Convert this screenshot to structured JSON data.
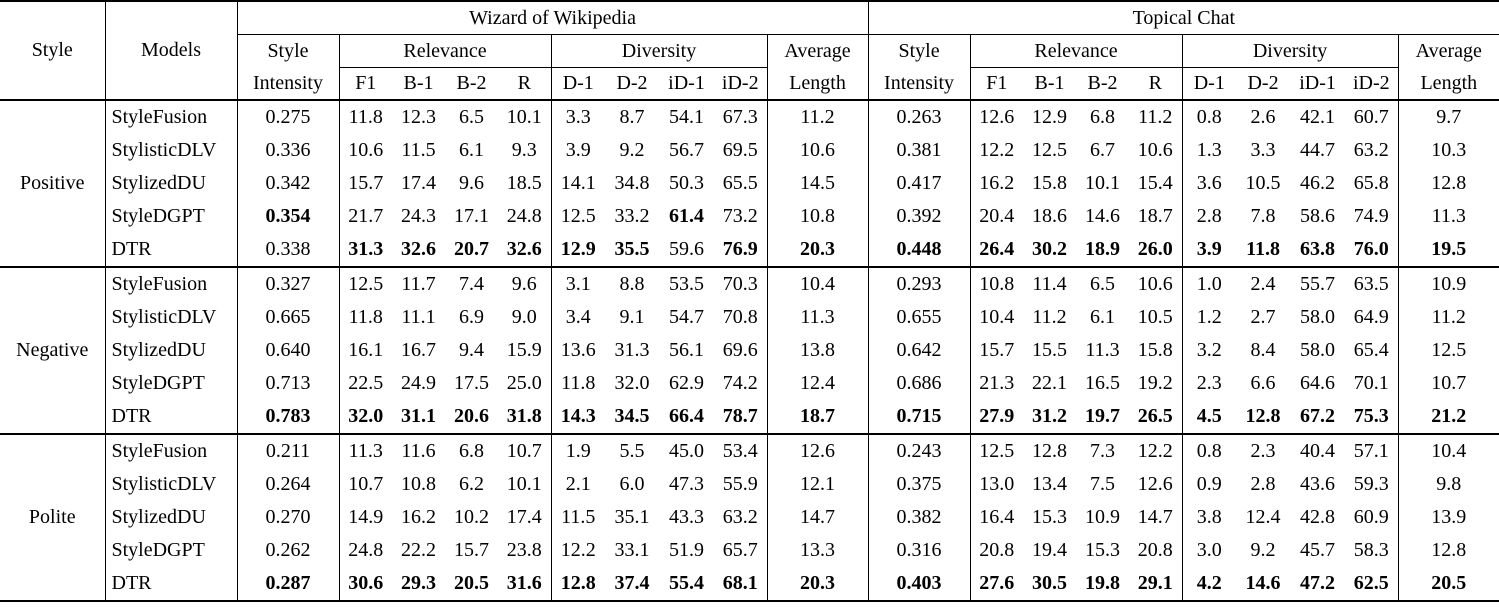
{
  "colors": {
    "text": "#000000",
    "background": "#ffffff",
    "border": "#000000"
  },
  "table": {
    "corner_headers": [
      "Style",
      "Models"
    ],
    "datasets": [
      "Wizard of Wikipedia",
      "Topical Chat"
    ],
    "subheaders": {
      "style_intensity": [
        "Style",
        "Intensity"
      ],
      "relevance": "Relevance",
      "diversity": "Diversity",
      "average_length": [
        "Average",
        "Length"
      ],
      "relevance_cols": [
        "F1",
        "B-1",
        "B-2",
        "R"
      ],
      "diversity_cols": [
        "D-1",
        "D-2",
        "iD-1",
        "iD-2"
      ]
    },
    "columns_per_dataset": [
      "Style Intensity",
      "F1",
      "B-1",
      "B-2",
      "R",
      "D-1",
      "D-2",
      "iD-1",
      "iD-2",
      "Average Length"
    ],
    "sections": [
      {
        "style": "Positive",
        "rows": [
          {
            "model": "StyleFusion",
            "cells": [
              "0.275",
              "11.8",
              "12.3",
              "6.5",
              "10.1",
              "3.3",
              "8.7",
              "54.1",
              "67.3",
              "11.2",
              "0.263",
              "12.6",
              "12.9",
              "6.8",
              "11.2",
              "0.8",
              "2.6",
              "42.1",
              "60.7",
              "9.7"
            ],
            "bold": []
          },
          {
            "model": "StylisticDLV",
            "cells": [
              "0.336",
              "10.6",
              "11.5",
              "6.1",
              "9.3",
              "3.9",
              "9.2",
              "56.7",
              "69.5",
              "10.6",
              "0.381",
              "12.2",
              "12.5",
              "6.7",
              "10.6",
              "1.3",
              "3.3",
              "44.7",
              "63.2",
              "10.3"
            ],
            "bold": []
          },
          {
            "model": "StylizedDU",
            "cells": [
              "0.342",
              "15.7",
              "17.4",
              "9.6",
              "18.5",
              "14.1",
              "34.8",
              "50.3",
              "65.5",
              "14.5",
              "0.417",
              "16.2",
              "15.8",
              "10.1",
              "15.4",
              "3.6",
              "10.5",
              "46.2",
              "65.8",
              "12.8"
            ],
            "bold": []
          },
          {
            "model": "StyleDGPT",
            "cells": [
              "0.354",
              "21.7",
              "24.3",
              "17.1",
              "24.8",
              "12.5",
              "33.2",
              "61.4",
              "73.2",
              "10.8",
              "0.392",
              "20.4",
              "18.6",
              "14.6",
              "18.7",
              "2.8",
              "7.8",
              "58.6",
              "74.9",
              "11.3"
            ],
            "bold": [
              0,
              7
            ]
          },
          {
            "model": "DTR",
            "cells": [
              "0.338",
              "31.3",
              "32.6",
              "20.7",
              "32.6",
              "12.9",
              "35.5",
              "59.6",
              "76.9",
              "20.3",
              "0.448",
              "26.4",
              "30.2",
              "18.9",
              "26.0",
              "3.9",
              "11.8",
              "63.8",
              "76.0",
              "19.5"
            ],
            "bold": [
              1,
              2,
              3,
              4,
              5,
              6,
              8,
              9,
              10,
              11,
              12,
              13,
              14,
              15,
              16,
              17,
              18,
              19
            ]
          }
        ]
      },
      {
        "style": "Negative",
        "rows": [
          {
            "model": "StyleFusion",
            "cells": [
              "0.327",
              "12.5",
              "11.7",
              "7.4",
              "9.6",
              "3.1",
              "8.8",
              "53.5",
              "70.3",
              "10.4",
              "0.293",
              "10.8",
              "11.4",
              "6.5",
              "10.6",
              "1.0",
              "2.4",
              "55.7",
              "63.5",
              "10.9"
            ],
            "bold": []
          },
          {
            "model": "StylisticDLV",
            "cells": [
              "0.665",
              "11.8",
              "11.1",
              "6.9",
              "9.0",
              "3.4",
              "9.1",
              "54.7",
              "70.8",
              "11.3",
              "0.655",
              "10.4",
              "11.2",
              "6.1",
              "10.5",
              "1.2",
              "2.7",
              "58.0",
              "64.9",
              "11.2"
            ],
            "bold": []
          },
          {
            "model": "StylizedDU",
            "cells": [
              "0.640",
              "16.1",
              "16.7",
              "9.4",
              "15.9",
              "13.6",
              "31.3",
              "56.1",
              "69.6",
              "13.8",
              "0.642",
              "15.7",
              "15.5",
              "11.3",
              "15.8",
              "3.2",
              "8.4",
              "58.0",
              "65.4",
              "12.5"
            ],
            "bold": []
          },
          {
            "model": "StyleDGPT",
            "cells": [
              "0.713",
              "22.5",
              "24.9",
              "17.5",
              "25.0",
              "11.8",
              "32.0",
              "62.9",
              "74.2",
              "12.4",
              "0.686",
              "21.3",
              "22.1",
              "16.5",
              "19.2",
              "2.3",
              "6.6",
              "64.6",
              "70.1",
              "10.7"
            ],
            "bold": []
          },
          {
            "model": "DTR",
            "cells": [
              "0.783",
              "32.0",
              "31.1",
              "20.6",
              "31.8",
              "14.3",
              "34.5",
              "66.4",
              "78.7",
              "18.7",
              "0.715",
              "27.9",
              "31.2",
              "19.7",
              "26.5",
              "4.5",
              "12.8",
              "67.2",
              "75.3",
              "21.2"
            ],
            "bold": [
              0,
              1,
              2,
              3,
              4,
              5,
              6,
              7,
              8,
              9,
              10,
              11,
              12,
              13,
              14,
              15,
              16,
              17,
              18,
              19
            ]
          }
        ]
      },
      {
        "style": "Polite",
        "rows": [
          {
            "model": "StyleFusion",
            "cells": [
              "0.211",
              "11.3",
              "11.6",
              "6.8",
              "10.7",
              "1.9",
              "5.5",
              "45.0",
              "53.4",
              "12.6",
              "0.243",
              "12.5",
              "12.8",
              "7.3",
              "12.2",
              "0.8",
              "2.3",
              "40.4",
              "57.1",
              "10.4"
            ],
            "bold": []
          },
          {
            "model": "StylisticDLV",
            "cells": [
              "0.264",
              "10.7",
              "10.8",
              "6.2",
              "10.1",
              "2.1",
              "6.0",
              "47.3",
              "55.9",
              "12.1",
              "0.375",
              "13.0",
              "13.4",
              "7.5",
              "12.6",
              "0.9",
              "2.8",
              "43.6",
              "59.3",
              "9.8"
            ],
            "bold": []
          },
          {
            "model": "StylizedDU",
            "cells": [
              "0.270",
              "14.9",
              "16.2",
              "10.2",
              "17.4",
              "11.5",
              "35.1",
              "43.3",
              "63.2",
              "14.7",
              "0.382",
              "16.4",
              "15.3",
              "10.9",
              "14.7",
              "3.8",
              "12.4",
              "42.8",
              "60.9",
              "13.9"
            ],
            "bold": []
          },
          {
            "model": "StyleDGPT",
            "cells": [
              "0.262",
              "24.8",
              "22.2",
              "15.7",
              "23.8",
              "12.2",
              "33.1",
              "51.9",
              "65.7",
              "13.3",
              "0.316",
              "20.8",
              "19.4",
              "15.3",
              "20.8",
              "3.0",
              "9.2",
              "45.7",
              "58.3",
              "12.8"
            ],
            "bold": []
          },
          {
            "model": "DTR",
            "cells": [
              "0.287",
              "30.6",
              "29.3",
              "20.5",
              "31.6",
              "12.8",
              "37.4",
              "55.4",
              "68.1",
              "20.3",
              "0.403",
              "27.6",
              "30.5",
              "19.8",
              "29.1",
              "4.2",
              "14.6",
              "47.2",
              "62.5",
              "20.5"
            ],
            "bold": [
              0,
              1,
              2,
              3,
              4,
              5,
              6,
              7,
              8,
              9,
              10,
              11,
              12,
              13,
              14,
              15,
              16,
              17,
              18,
              19
            ]
          }
        ]
      }
    ]
  }
}
